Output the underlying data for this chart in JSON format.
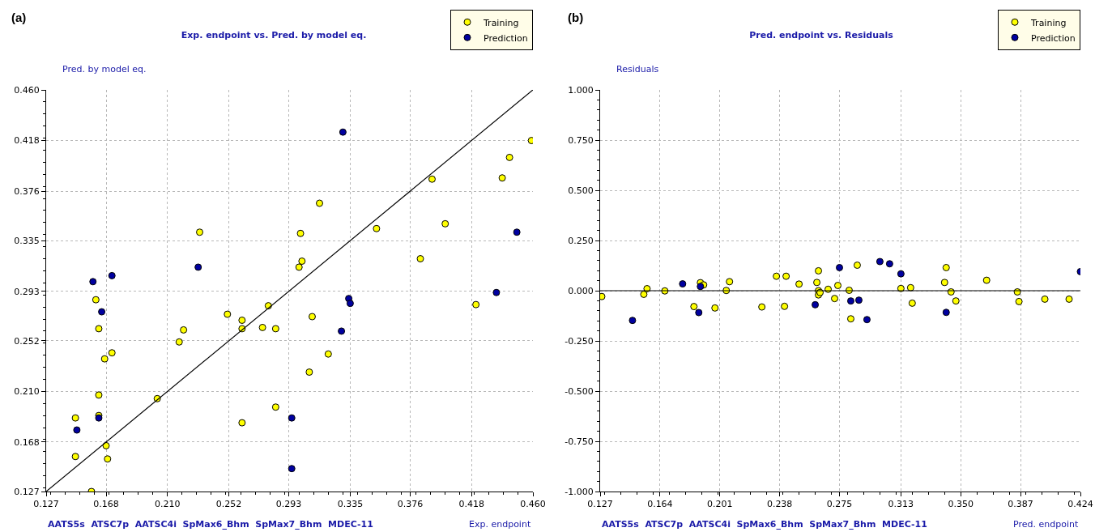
{
  "chart_data": [
    {
      "type": "scatter",
      "title": "Exp. endpoint vs. Pred. by model eq.",
      "xlabel": "Exp. endpoint",
      "ylabel": "Pred. by model eq.",
      "annotations": [
        "(a)",
        "AATS5s  ATSC7p  AATSC4i  SpMax6_Bhm  SpMax7_Bhm  MDEC-11"
      ],
      "series": [
        {
          "name": "Training",
          "color": "#ffff00",
          "x": [
            0.147,
            0.147,
            0.158,
            0.161,
            0.163,
            0.167,
            0.172,
            0.163,
            0.163,
            0.168,
            0.169,
            0.203,
            0.218,
            0.221,
            0.232,
            0.251,
            0.261,
            0.261,
            0.261,
            0.275,
            0.279,
            0.284,
            0.284,
            0.314,
            0.301,
            0.302,
            0.3,
            0.309,
            0.32,
            0.307,
            0.353,
            0.391,
            0.4,
            0.383,
            0.421,
            0.439,
            0.444,
            0.459
          ],
          "values": [
            0.188,
            0.156,
            0.127,
            0.286,
            0.262,
            0.237,
            0.242,
            0.207,
            0.19,
            0.165,
            0.154,
            0.204,
            0.251,
            0.261,
            0.342,
            0.274,
            0.269,
            0.262,
            0.184,
            0.263,
            0.281,
            0.262,
            0.197,
            0.366,
            0.341,
            0.318,
            0.313,
            0.272,
            0.241,
            0.226,
            0.345,
            0.386,
            0.349,
            0.32,
            0.282,
            0.387,
            0.404,
            0.418
          ]
        },
        {
          "name": "Prediction",
          "color": "#0000a0",
          "x": [
            0.148,
            0.159,
            0.165,
            0.172,
            0.163,
            0.231,
            0.33,
            0.334,
            0.335,
            0.329,
            0.295,
            0.295,
            0.435,
            0.449
          ],
          "values": [
            0.178,
            0.301,
            0.276,
            0.306,
            0.188,
            0.313,
            0.425,
            0.287,
            0.283,
            0.26,
            0.188,
            0.146,
            0.292,
            0.342
          ]
        },
        {
          "type": "line",
          "marker": "none",
          "color": "#000000",
          "x": [
            0.127,
            0.46
          ],
          "values": [
            0.127,
            0.46
          ]
        }
      ],
      "xlim": [
        0.127,
        0.46
      ],
      "ylim": [
        0.127,
        0.46
      ],
      "xticks": [
        0.127,
        0.168,
        {
          "value": 0.21,
          "label": "0.210"
        },
        0.252,
        0.293,
        0.335,
        0.376,
        0.418,
        {
          "value": 0.46,
          "label": "0.460"
        }
      ],
      "yticks": [
        0.127,
        0.168,
        {
          "value": 0.21,
          "label": "0.210"
        },
        0.252,
        0.293,
        0.335,
        0.376,
        0.418,
        {
          "value": 0.46,
          "label": "0.460"
        }
      ],
      "grid": true,
      "legend": "top right",
      "marker": "circle"
    },
    {
      "type": "scatter",
      "title": "Pred. endpoint vs. Residuals",
      "xlabel": "Pred. endpoint",
      "ylabel": "Residuals",
      "annotations": [
        "(b)",
        "AATS5s  ATSC7p  AATSC4i  SpMax6_Bhm  SpMax7_Bhm  MDEC-11"
      ],
      "series": [
        {
          "name": "Training",
          "color": "#ffff00",
          "x": [
            0.128,
            0.154,
            0.156,
            0.167,
            0.185,
            0.189,
            0.191,
            0.198,
            0.205,
            0.207,
            0.227,
            0.236,
            0.242,
            0.241,
            0.25,
            0.262,
            0.261,
            0.262,
            0.262,
            0.263,
            0.268,
            0.272,
            0.274,
            0.281,
            0.282,
            0.286,
            0.313,
            0.319,
            0.32,
            0.341,
            0.34,
            0.344,
            0.347,
            0.366,
            0.385,
            0.386,
            0.402,
            0.417
          ],
          "values": [
            -0.029,
            -0.018,
            0.01,
            -0.001,
            -0.079,
            0.04,
            0.029,
            -0.086,
            0.001,
            0.045,
            -0.081,
            0.072,
            0.072,
            -0.078,
            0.033,
            0.099,
            0.041,
            0.0,
            -0.021,
            -0.009,
            0.007,
            -0.039,
            0.026,
            0.002,
            -0.14,
            0.127,
            0.011,
            0.015,
            -0.062,
            0.115,
            0.041,
            -0.006,
            -0.051,
            0.052,
            -0.006,
            -0.054,
            -0.042,
            -0.042
          ]
        },
        {
          "name": "Prediction",
          "color": "#0000a0",
          "x": [
            0.147,
            0.178,
            0.189,
            0.188,
            0.26,
            0.275,
            0.282,
            0.287,
            0.292,
            0.3,
            0.306,
            0.313,
            0.341,
            0.424
          ],
          "values": [
            -0.148,
            0.034,
            0.021,
            -0.109,
            -0.07,
            0.115,
            -0.051,
            -0.047,
            -0.144,
            0.145,
            0.134,
            0.084,
            -0.108,
            0.095
          ]
        }
      ],
      "ref_lines": [
        {
          "axis": "y",
          "value": 0,
          "color": "#000000"
        }
      ],
      "xlim": [
        0.127,
        0.424
      ],
      "ylim": [
        -1,
        1
      ],
      "xticks": [
        0.127,
        0.164,
        0.201,
        0.238,
        0.275,
        0.313,
        {
          "value": 0.35,
          "label": "0.350"
        },
        0.387,
        0.424
      ],
      "yticks": [
        {
          "value": -1,
          "label": "-1.000"
        },
        {
          "value": -0.75,
          "label": "-0.750"
        },
        {
          "value": -0.5,
          "label": "-0.500"
        },
        {
          "value": -0.25,
          "label": "-0.250"
        },
        {
          "value": 0,
          "label": "0.000"
        },
        {
          "value": 0.25,
          "label": "0.250"
        },
        {
          "value": 0.5,
          "label": "0.500"
        },
        {
          "value": 0.75,
          "label": "0.750"
        },
        {
          "value": 1,
          "label": "1.000"
        }
      ],
      "grid": true,
      "legend": "top right",
      "marker": "circle"
    }
  ]
}
